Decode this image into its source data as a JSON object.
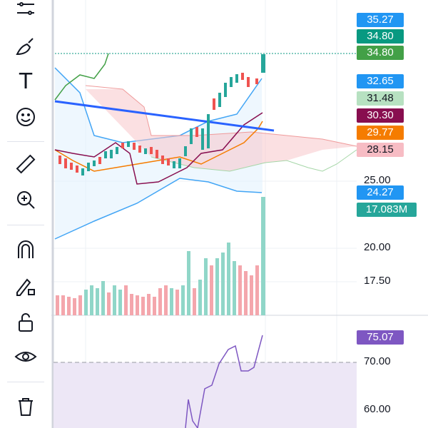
{
  "toolbar": {
    "tools": [
      {
        "name": "indicator-lines-tool",
        "icon": "lines-icon"
      },
      {
        "name": "brush-tool",
        "icon": "brush-icon"
      },
      {
        "name": "text-tool",
        "icon": "text-icon",
        "glyph": "T"
      },
      {
        "name": "emoji-tool",
        "icon": "smiley-icon"
      },
      {
        "name": "ruler-tool",
        "icon": "ruler-icon"
      },
      {
        "name": "zoom-tool",
        "icon": "zoom-in-icon"
      },
      {
        "name": "magnet-tool",
        "icon": "magnet-icon"
      },
      {
        "name": "lock-drawing-tool",
        "icon": "pencil-lock-icon"
      },
      {
        "name": "unlock-tool",
        "icon": "unlock-icon"
      },
      {
        "name": "visibility-tool",
        "icon": "eye-icon"
      },
      {
        "name": "delete-tool",
        "icon": "trash-icon"
      }
    ]
  },
  "price_labels": [
    {
      "text": "35.27",
      "color": "#2196f3"
    },
    {
      "text": "34.80",
      "color": "#089981"
    },
    {
      "text": "34.80",
      "color": "#43a047"
    },
    {
      "text": "32.65",
      "color": "#2196f3"
    },
    {
      "text": "31.48",
      "color": "#b7e1c1",
      "text_color": "#131722"
    },
    {
      "text": "30.30",
      "color": "#880e4f"
    },
    {
      "text": "29.77",
      "color": "#f57c00"
    },
    {
      "text": "28.15",
      "color": "#f7bcc4",
      "text_color": "#131722"
    },
    {
      "text": "24.27",
      "color": "#2196f3"
    },
    {
      "text": "17.083M",
      "color": "#26a69a"
    },
    {
      "text": "75.07",
      "color": "#7e57c2"
    }
  ],
  "axis_ticks": [
    "25.00",
    "20.00",
    "17.50",
    "70.00",
    "60.00"
  ],
  "colors": {
    "up": "#26a69a",
    "down": "#ef5350",
    "trendline": "#2962ff",
    "rsi": "#7e57c2",
    "cloud_red": "#f7c6cb",
    "cloud_green": "#c8e6c9"
  }
}
